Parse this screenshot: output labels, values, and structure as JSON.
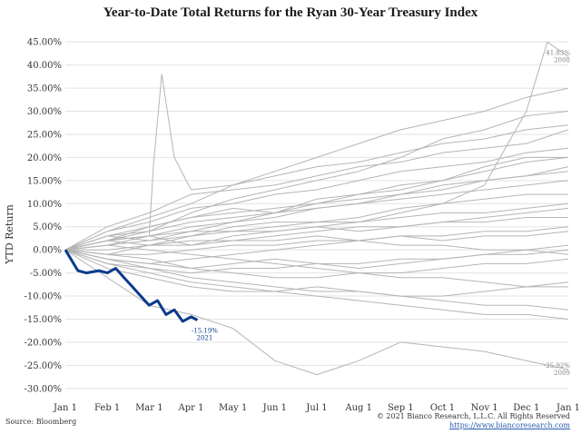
{
  "title": "Year-to-Date Total Returns for the Ryan 30-Year Treasury Index",
  "source": "Source: Bloomberg",
  "copyright": "© 2021 Bianco Research, L.L.C. All Rights Reserved",
  "url": "https://www.biancoresearch.com",
  "colors": {
    "highlight": "#0a3a8c",
    "history": "#b5b5b5",
    "grid": "#e3e3e3"
  },
  "chart_data": {
    "type": "line",
    "title": "Year-to-Date Total Returns for the Ryan 30-Year Treasury Index",
    "xlabel": "",
    "ylabel": "YTD Return",
    "x_ticks": [
      "Jan 1",
      "Feb 1",
      "Mar 1",
      "Apr 1",
      "May 1",
      "Jun 1",
      "Jul 1",
      "Aug 1",
      "Sep 1",
      "Oct 1",
      "Nov 1",
      "Dec 1",
      "Jan 1"
    ],
    "y_ticks": [
      "45.00%",
      "40.00%",
      "35.00%",
      "30.00%",
      "25.00%",
      "20.00%",
      "15.00%",
      "10.00%",
      "5.00%",
      "0.00%",
      "-5.00%",
      "-10.00%",
      "-15.00%",
      "-20.00%",
      "-25.00%",
      "-30.00%"
    ],
    "ylim": [
      -32,
      47
    ],
    "y_unit": "%",
    "grid": "horizontal",
    "x_unit": "months since Jan 1",
    "series": [
      {
        "name": "2008",
        "highlight": false,
        "x": [
          0,
          1,
          2,
          3,
          4,
          5,
          6,
          7,
          8,
          9,
          10,
          11,
          11.5,
          12
        ],
        "y": [
          0,
          2,
          3,
          1,
          3,
          4,
          5,
          6,
          8,
          10,
          14,
          30,
          45,
          41.83
        ]
      },
      {
        "name": "2009",
        "highlight": false,
        "x": [
          0,
          1,
          2,
          3,
          4,
          5,
          6,
          7,
          8,
          9,
          10,
          11,
          12
        ],
        "y": [
          0,
          -6,
          -12,
          -14,
          -17,
          -24,
          -27,
          -24,
          -20,
          -21,
          -22,
          -24,
          -25.92
        ]
      },
      {
        "name": "2021",
        "highlight": true,
        "x": [
          0,
          0.1,
          0.3,
          0.5,
          0.8,
          1.0,
          1.2,
          1.4,
          1.6,
          1.8,
          2.0,
          2.2,
          2.4,
          2.6,
          2.8,
          3.0,
          3.15
        ],
        "y": [
          0,
          -1.5,
          -4.5,
          -5,
          -4.5,
          -5,
          -4,
          -6,
          -8,
          -10,
          -12,
          -11,
          -14,
          -13,
          -15.5,
          -14.5,
          -15.19
        ]
      },
      {
        "name": "",
        "highlight": false,
        "x": [
          0,
          1,
          2,
          3,
          4,
          5,
          6,
          7,
          8,
          9,
          10,
          11,
          12
        ],
        "y": [
          0,
          3,
          5,
          7,
          9,
          8,
          11,
          12,
          14,
          15,
          18,
          20,
          20
        ]
      },
      {
        "name": "",
        "highlight": false,
        "x": [
          0,
          1,
          2,
          3,
          4,
          5,
          6,
          7,
          8,
          9,
          10,
          11,
          12
        ],
        "y": [
          0,
          2,
          4,
          8,
          11,
          13,
          15,
          17,
          20,
          24,
          26,
          29,
          30
        ]
      },
      {
        "name": "",
        "highlight": false,
        "x": [
          0,
          1,
          2,
          3,
          4,
          5,
          6,
          7,
          8,
          9,
          10,
          11,
          12
        ],
        "y": [
          0,
          4,
          7,
          10,
          14,
          17,
          20,
          23,
          26,
          28,
          30,
          33,
          35
        ]
      },
      {
        "name": "",
        "highlight": false,
        "x": [
          0,
          1,
          2,
          3,
          4,
          5,
          6,
          7,
          8,
          9,
          10,
          11,
          12
        ],
        "y": [
          0,
          1,
          2,
          3,
          5,
          6,
          6,
          7,
          9,
          10,
          11,
          12,
          12
        ]
      },
      {
        "name": "",
        "highlight": false,
        "x": [
          0,
          1,
          2,
          3,
          4,
          5,
          6,
          7,
          8,
          9,
          10,
          11,
          12
        ],
        "y": [
          0,
          -1,
          1,
          2,
          2,
          3,
          4,
          5,
          5,
          6,
          7,
          8,
          9
        ]
      },
      {
        "name": "",
        "highlight": false,
        "x": [
          0,
          1,
          2,
          3,
          4,
          5,
          6,
          7,
          8,
          9,
          10,
          11,
          12
        ],
        "y": [
          0,
          2,
          1,
          3,
          4,
          4,
          5,
          4,
          5,
          6,
          6,
          7,
          7
        ]
      },
      {
        "name": "",
        "highlight": false,
        "x": [
          0,
          1,
          2,
          3,
          4,
          5,
          6,
          7,
          8,
          9,
          10,
          11,
          12
        ],
        "y": [
          0,
          -2,
          -3,
          -2,
          -1,
          0,
          1,
          2,
          3,
          3,
          4,
          4,
          5
        ]
      },
      {
        "name": "",
        "highlight": false,
        "x": [
          0,
          1,
          2,
          3,
          4,
          5,
          6,
          7,
          8,
          9,
          10,
          11,
          12
        ],
        "y": [
          0,
          -1,
          -2,
          -4,
          -5,
          -6,
          -6,
          -5,
          -5,
          -4,
          -3,
          -3,
          -2
        ]
      },
      {
        "name": "",
        "highlight": false,
        "x": [
          0,
          1,
          2,
          3,
          4,
          5,
          6,
          7,
          8,
          9,
          10,
          11,
          12
        ],
        "y": [
          0,
          -3,
          -5,
          -7,
          -8,
          -9,
          -10,
          -11,
          -12,
          -13,
          -14,
          -14,
          -15
        ]
      },
      {
        "name": "",
        "highlight": false,
        "x": [
          0,
          1,
          2,
          3,
          4,
          5,
          6,
          7,
          8,
          9,
          10,
          11,
          12
        ],
        "y": [
          0,
          -2,
          -4,
          -6,
          -7,
          -8,
          -9,
          -9,
          -10,
          -11,
          -12,
          -12,
          -13
        ]
      },
      {
        "name": "",
        "highlight": false,
        "x": [
          0,
          1,
          2,
          3,
          4,
          5,
          6,
          7,
          8,
          9,
          10,
          11,
          12
        ],
        "y": [
          0,
          1,
          0,
          -1,
          -2,
          -3,
          -4,
          -5,
          -6,
          -6,
          -7,
          -8,
          -8
        ]
      },
      {
        "name": "",
        "highlight": false,
        "x": [
          0,
          1,
          2,
          3,
          4,
          5,
          6,
          7,
          8,
          9,
          10,
          11,
          12
        ],
        "y": [
          0,
          3,
          2,
          4,
          6,
          7,
          9,
          10,
          12,
          14,
          15,
          16,
          17
        ]
      },
      {
        "name": "",
        "highlight": false,
        "x": [
          0,
          1,
          2,
          3,
          4,
          5,
          6,
          7,
          8,
          9,
          10,
          11,
          12
        ],
        "y": [
          0,
          4,
          6,
          9,
          10,
          12,
          13,
          15,
          17,
          18,
          19,
          21,
          22
        ]
      },
      {
        "name": "",
        "highlight": false,
        "x": [
          0,
          1,
          2,
          2.1,
          2.3,
          2.6,
          3,
          4,
          5,
          6,
          7,
          8,
          9,
          10,
          11,
          12
        ],
        "y": [
          0,
          2,
          3,
          18,
          38,
          20,
          13,
          14,
          16,
          18,
          19,
          21,
          23,
          24,
          26,
          27
        ]
      },
      {
        "name": "",
        "highlight": false,
        "x": [
          0,
          1,
          2,
          3,
          4,
          5,
          6,
          7,
          8,
          9,
          10,
          11,
          12
        ],
        "y": [
          0,
          1,
          3,
          4,
          4,
          5,
          6,
          6,
          7,
          8,
          8,
          9,
          10
        ]
      },
      {
        "name": "",
        "highlight": false,
        "x": [
          0,
          1,
          2,
          3,
          4,
          5,
          6,
          7,
          8,
          9,
          10,
          11,
          12
        ],
        "y": [
          0,
          -1,
          -1,
          0,
          1,
          1,
          2,
          2,
          3,
          2,
          3,
          3,
          4
        ]
      },
      {
        "name": "",
        "highlight": false,
        "x": [
          0,
          1,
          2,
          3,
          4,
          5,
          6,
          7,
          8,
          9,
          10,
          11,
          12
        ],
        "y": [
          0,
          -2,
          -3,
          -4,
          -3,
          -2,
          -3,
          -4,
          -3,
          -2,
          -1,
          -1,
          0
        ]
      },
      {
        "name": "",
        "highlight": false,
        "x": [
          0,
          1,
          2,
          3,
          4,
          5,
          6,
          7,
          8,
          9,
          10,
          11,
          12
        ],
        "y": [
          0,
          2,
          5,
          7,
          8,
          9,
          10,
          11,
          12,
          13,
          15,
          16,
          18
        ]
      },
      {
        "name": "",
        "highlight": false,
        "x": [
          0,
          1,
          2,
          3,
          4,
          5,
          6,
          7,
          8,
          9,
          10,
          11,
          12
        ],
        "y": [
          0,
          -4,
          -6,
          -8,
          -9,
          -9,
          -8,
          -9,
          -10,
          -10,
          -9,
          -8,
          -7
        ]
      },
      {
        "name": "",
        "highlight": false,
        "x": [
          0,
          1,
          2,
          3,
          4,
          5,
          6,
          7,
          8,
          9,
          10,
          11,
          12
        ],
        "y": [
          0,
          5,
          8,
          12,
          13,
          14,
          16,
          18,
          19,
          21,
          22,
          23,
          26
        ]
      },
      {
        "name": "",
        "highlight": false,
        "x": [
          0,
          1,
          2,
          3,
          4,
          5,
          6,
          7,
          8,
          9,
          10,
          11,
          12
        ],
        "y": [
          0,
          0,
          1,
          1,
          2,
          2,
          3,
          2,
          1,
          1,
          0,
          0,
          -1
        ]
      },
      {
        "name": "",
        "highlight": false,
        "x": [
          0,
          1,
          2,
          3,
          4,
          5,
          6,
          7,
          8,
          9,
          10,
          11,
          12
        ],
        "y": [
          0,
          -3,
          -4,
          -5,
          -4,
          -4,
          -3,
          -3,
          -2,
          -2,
          -1,
          0,
          1
        ]
      },
      {
        "name": "",
        "highlight": false,
        "x": [
          0,
          1,
          2,
          3,
          4,
          5,
          6,
          7,
          8,
          9,
          10,
          11,
          12
        ],
        "y": [
          0,
          2,
          3,
          5,
          6,
          8,
          9,
          10,
          11,
          12,
          13,
          14,
          15
        ]
      },
      {
        "name": "",
        "highlight": false,
        "x": [
          0,
          1,
          2,
          3,
          4,
          5,
          6,
          7,
          8,
          9,
          10,
          11,
          12
        ],
        "y": [
          0,
          3,
          4,
          6,
          7,
          8,
          10,
          12,
          13,
          15,
          17,
          19,
          20
        ]
      }
    ],
    "annotations": [
      {
        "value": "41.83%",
        "label": "2008",
        "series": "2008"
      },
      {
        "value": "-25.92%",
        "label": "2009",
        "series": "2009"
      },
      {
        "value": "-15.19%",
        "label": "2021",
        "series": "2021"
      }
    ]
  }
}
